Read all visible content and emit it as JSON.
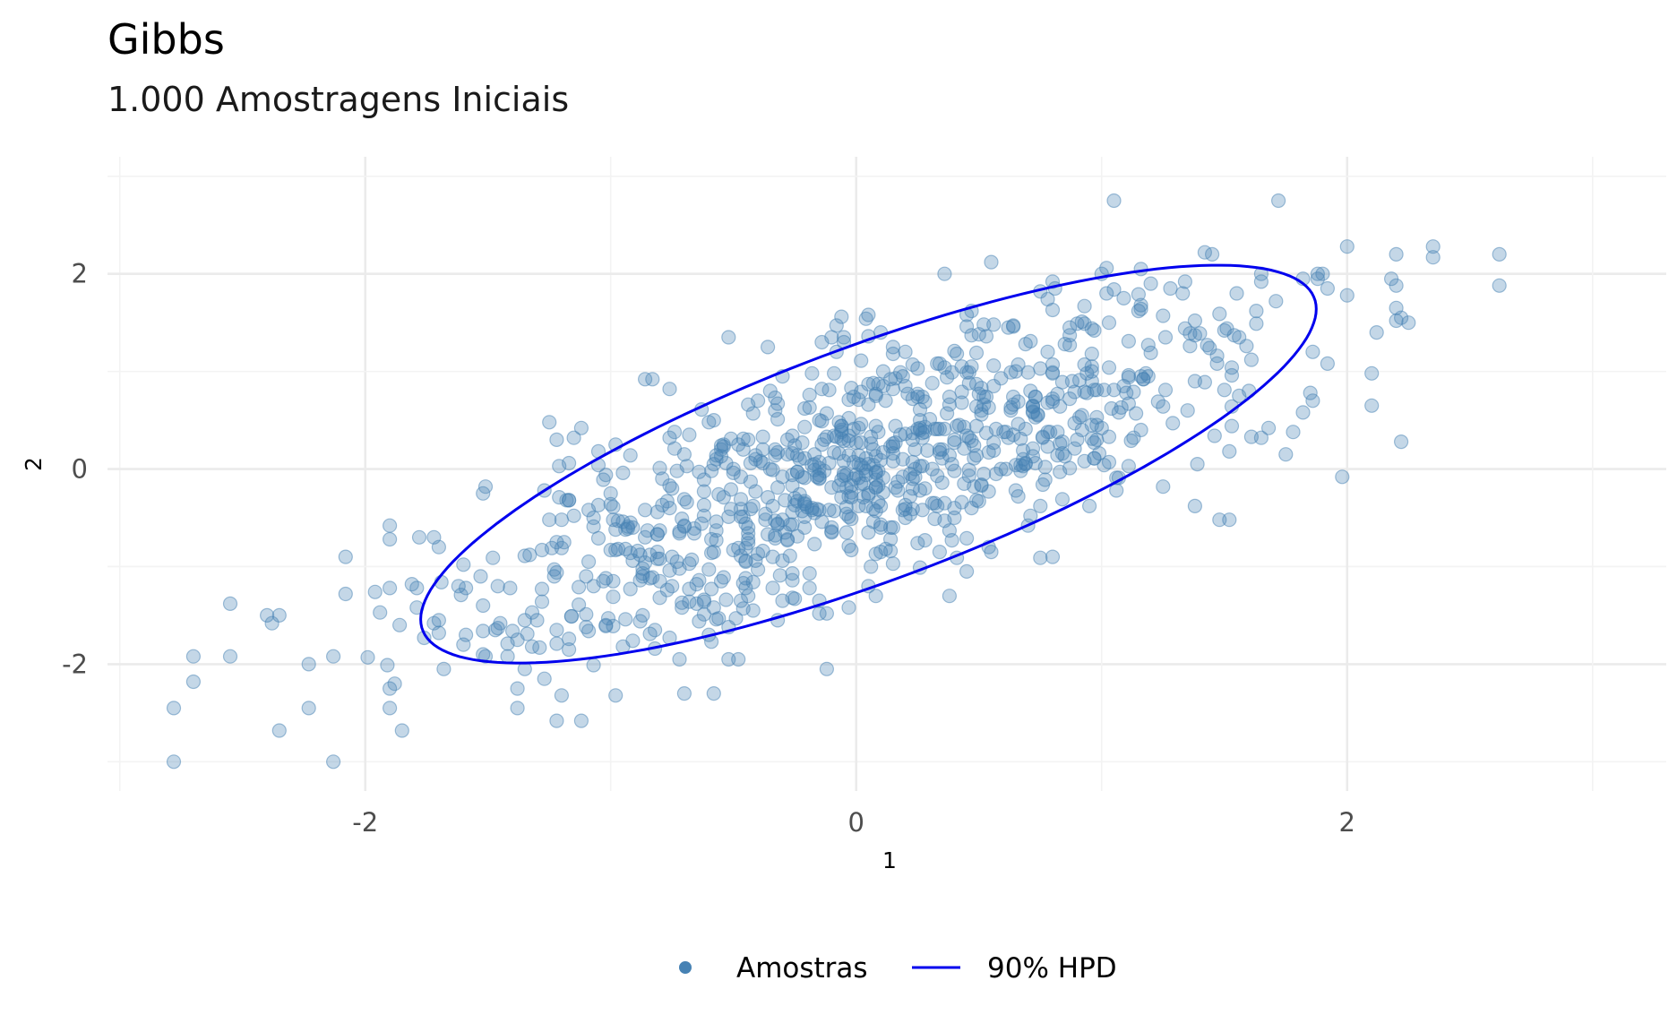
{
  "chart_data": {
    "type": "scatter",
    "title": "Gibbs",
    "subtitle": "1.000 Amostragens Iniciais",
    "xlabel": "1",
    "ylabel": "2",
    "xlim": [
      -3.05,
      3.3
    ],
    "ylim": [
      -3.3,
      3.2
    ],
    "x_ticks": [
      -2,
      0,
      2
    ],
    "x_tick_labels": [
      "-2",
      "0",
      "2"
    ],
    "y_ticks": [
      -2,
      0,
      2
    ],
    "y_tick_labels": [
      "-2",
      "0",
      "2"
    ],
    "grid": true,
    "legend_position": "bottom",
    "colors": {
      "points": "#4682b4",
      "hpd": "#0000ee"
    },
    "series": [
      {
        "name": "Amostras",
        "kind": "points",
        "mean": [
          0.05,
          0.05
        ],
        "sd": [
          0.85,
          0.95
        ],
        "correlation": 0.78,
        "n_generated": 860,
        "points": [
          [
            -2.78,
            -3.0
          ],
          [
            -2.13,
            -3.0
          ],
          [
            -2.78,
            -2.45
          ],
          [
            -2.7,
            -2.18
          ],
          [
            -2.7,
            -1.92
          ],
          [
            -2.55,
            -1.92
          ],
          [
            -2.55,
            -1.38
          ],
          [
            -2.4,
            -1.5
          ],
          [
            -2.35,
            -1.5
          ],
          [
            -2.38,
            -1.58
          ],
          [
            -2.35,
            -2.68
          ],
          [
            -2.23,
            -2.0
          ],
          [
            -2.23,
            -2.45
          ],
          [
            -2.13,
            -1.92
          ],
          [
            -2.08,
            -1.28
          ],
          [
            -2.08,
            -0.9
          ],
          [
            -1.9,
            -0.58
          ],
          [
            -1.9,
            -0.72
          ],
          [
            -1.9,
            -1.22
          ],
          [
            -1.9,
            -2.25
          ],
          [
            -1.88,
            -2.2
          ],
          [
            -1.9,
            -2.45
          ],
          [
            -1.85,
            -2.68
          ],
          [
            -1.78,
            -0.7
          ],
          [
            -1.72,
            -0.7
          ],
          [
            -1.7,
            -1.55
          ],
          [
            -1.68,
            -2.05
          ],
          [
            -1.72,
            -1.58
          ],
          [
            -1.6,
            -1.8
          ],
          [
            -1.52,
            -1.9
          ],
          [
            -1.42,
            -1.92
          ],
          [
            -1.38,
            -2.25
          ],
          [
            -1.38,
            -2.45
          ],
          [
            -1.35,
            -2.05
          ],
          [
            -1.3,
            -1.55
          ],
          [
            -1.22,
            -2.58
          ],
          [
            -1.2,
            -2.32
          ],
          [
            -1.12,
            -2.58
          ],
          [
            -0.98,
            -2.32
          ],
          [
            -0.72,
            -1.95
          ],
          [
            -0.7,
            -2.3
          ],
          [
            -0.58,
            -2.3
          ],
          [
            -0.52,
            -1.95
          ],
          [
            -0.32,
            -1.55
          ],
          [
            -0.15,
            -1.48
          ],
          [
            -1.25,
            0.48
          ],
          [
            -1.22,
            0.3
          ],
          [
            -1.12,
            0.42
          ],
          [
            -1.05,
            0.18
          ],
          [
            -0.98,
            0.25
          ],
          [
            -0.83,
            0.92
          ],
          [
            -0.76,
            0.82
          ],
          [
            -0.58,
            0.5
          ],
          [
            -0.4,
            0.7
          ],
          [
            -0.35,
            0.8
          ],
          [
            -0.3,
            0.95
          ],
          [
            -0.1,
            1.35
          ],
          [
            -0.08,
            1.2
          ],
          [
            -0.05,
            1.35
          ],
          [
            0.1,
            1.4
          ],
          [
            0.2,
            1.2
          ],
          [
            0.55,
            2.12
          ],
          [
            0.75,
            1.82
          ],
          [
            1.0,
            2.0
          ],
          [
            1.02,
            1.8
          ],
          [
            1.03,
            1.5
          ],
          [
            1.15,
            1.62
          ],
          [
            1.2,
            1.9
          ],
          [
            1.38,
            1.52
          ],
          [
            1.42,
            2.22
          ],
          [
            1.45,
            2.2
          ],
          [
            1.55,
            1.8
          ],
          [
            1.65,
            1.92
          ],
          [
            1.72,
            2.75
          ],
          [
            1.05,
            2.75
          ],
          [
            1.82,
            1.95
          ],
          [
            1.88,
            2.0
          ],
          [
            1.9,
            2.0
          ],
          [
            1.88,
            1.95
          ],
          [
            1.92,
            1.85
          ],
          [
            2.0,
            1.78
          ],
          [
            2.0,
            2.28
          ],
          [
            2.2,
            2.2
          ],
          [
            2.18,
            1.95
          ],
          [
            2.22,
            1.55
          ],
          [
            2.25,
            1.5
          ],
          [
            2.2,
            1.65
          ],
          [
            2.12,
            1.4
          ],
          [
            2.35,
            2.28
          ],
          [
            2.35,
            2.17
          ],
          [
            2.62,
            2.2
          ],
          [
            2.62,
            1.88
          ],
          [
            2.2,
            1.88
          ],
          [
            2.2,
            1.52
          ],
          [
            2.1,
            0.98
          ],
          [
            2.1,
            0.65
          ],
          [
            2.22,
            0.28
          ],
          [
            1.98,
            -0.08
          ],
          [
            1.85,
            0.78
          ],
          [
            1.78,
            0.38
          ],
          [
            1.68,
            0.42
          ],
          [
            1.65,
            0.32
          ],
          [
            1.75,
            0.15
          ],
          [
            1.52,
            0.18
          ],
          [
            1.48,
            -0.52
          ],
          [
            1.52,
            -0.52
          ],
          [
            1.38,
            -0.38
          ],
          [
            1.25,
            -0.18
          ],
          [
            0.95,
            -0.38
          ],
          [
            0.8,
            -0.9
          ],
          [
            0.7,
            -0.58
          ],
          [
            0.55,
            -0.85
          ],
          [
            0.45,
            -1.05
          ],
          [
            0.38,
            -1.3
          ],
          [
            0.15,
            -0.6
          ],
          [
            0.1,
            -0.85
          ],
          [
            0.05,
            -1.2
          ],
          [
            0.08,
            -1.3
          ],
          [
            -0.12,
            -1.48
          ],
          [
            -0.3,
            -1.35
          ],
          [
            -0.45,
            -1.22
          ],
          [
            -0.48,
            -1.95
          ],
          [
            -0.65,
            -1.38
          ],
          [
            -0.75,
            -1.2
          ],
          [
            -0.82,
            -1.65
          ],
          [
            -0.95,
            -1.82
          ],
          [
            -1.02,
            -1.6
          ],
          [
            -1.1,
            -1.62
          ],
          [
            -1.38,
            -1.75
          ],
          [
            -1.45,
            -1.58
          ],
          [
            -1.52,
            -1.4
          ],
          [
            -1.62,
            -1.2
          ],
          [
            -1.6,
            -0.98
          ]
        ]
      },
      {
        "name": "90% HPD",
        "kind": "ellipse",
        "center": [
          0.05,
          0.05
        ],
        "level": 0.9
      }
    ]
  }
}
